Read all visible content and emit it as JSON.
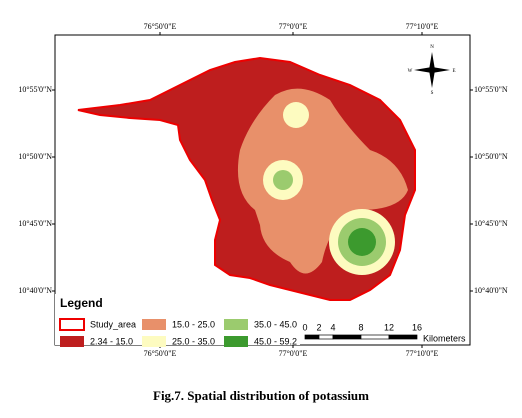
{
  "map": {
    "lon_labels": [
      "76°50'0\"E",
      "77°0'0\"E",
      "77°10'0\"E"
    ],
    "lat_labels": [
      "10°55'0\"N",
      "10°50'0\"N",
      "10°45'0\"N",
      "10°40'0\"N"
    ],
    "north_arrow": [
      "N",
      "E",
      "S",
      "W"
    ],
    "legend": {
      "title": "Legend",
      "items": [
        {
          "label": "Study_area",
          "color": "#ffffff"
        },
        {
          "label": "15.0 - 25.0",
          "color": "#e8906a"
        },
        {
          "label": "35.0 - 45.0",
          "color": "#9bcb6e"
        },
        {
          "label": "2.34 - 15.0",
          "color": "#be1e1e"
        },
        {
          "label": "25.0 - 35.0",
          "color": "#fdfbc0"
        },
        {
          "label": "45.0 - 59.2",
          "color": "#3c9a2e"
        }
      ]
    },
    "scale_bar": {
      "ticks": [
        0,
        2,
        4,
        8,
        12,
        16
      ],
      "unit": "Kilometers"
    }
  },
  "caption": "Fig.7. Spatial distribution of potassium"
}
